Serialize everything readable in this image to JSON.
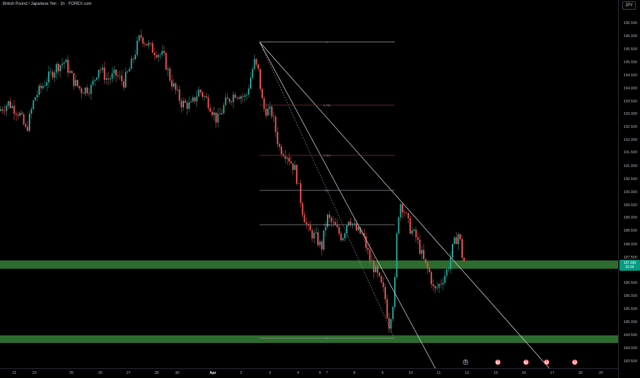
{
  "header": {
    "symbol_title": "British Pound / Japanese Yen · 1h · FOREX.com"
  },
  "price_scale": {
    "currency": "JPY",
    "labels": [
      "196.500",
      "196.000",
      "195.500",
      "195.000",
      "194.500",
      "194.000",
      "193.500",
      "193.000",
      "192.500",
      "192.000",
      "191.500",
      "191.000",
      "190.500",
      "190.000",
      "189.500",
      "189.000",
      "188.500",
      "188.000",
      "187.500",
      "186.500",
      "186.000",
      "185.500",
      "185.000",
      "184.500",
      "184.000",
      "183.500"
    ],
    "last_price": "187.289",
    "countdown": "02:28",
    "last_price_color": "#089981"
  },
  "time_axis": {
    "labels": [
      "21",
      "23",
      "25",
      "26",
      "27",
      "28",
      "30",
      "Apr",
      "2",
      "3",
      "4",
      "6",
      "7",
      "8",
      "9",
      "10",
      "11",
      "13",
      "15",
      "16",
      "17",
      "18",
      "20"
    ],
    "bold_labels": [
      "Apr"
    ]
  },
  "drawings": {
    "fib_levels": [
      "1",
      "0.786",
      "0.618",
      "0.5",
      "0.382",
      "0"
    ],
    "zone_color": "#2e6b2e"
  },
  "events": [
    {
      "icon": "dividend-icon",
      "glyph": "¢",
      "style": "neutral"
    },
    {
      "icon": "earnings-icon",
      "glyph": "$",
      "style": "red"
    },
    {
      "icon": "earnings-icon",
      "glyph": "$",
      "style": "red"
    },
    {
      "icon": "earnings-icon",
      "glyph": "$",
      "style": "red"
    },
    {
      "icon": "earnings-icon",
      "glyph": "$",
      "style": "red"
    }
  ],
  "colors": {
    "up": "#26a69a",
    "down": "#ef5350",
    "background": "#000000"
  }
}
